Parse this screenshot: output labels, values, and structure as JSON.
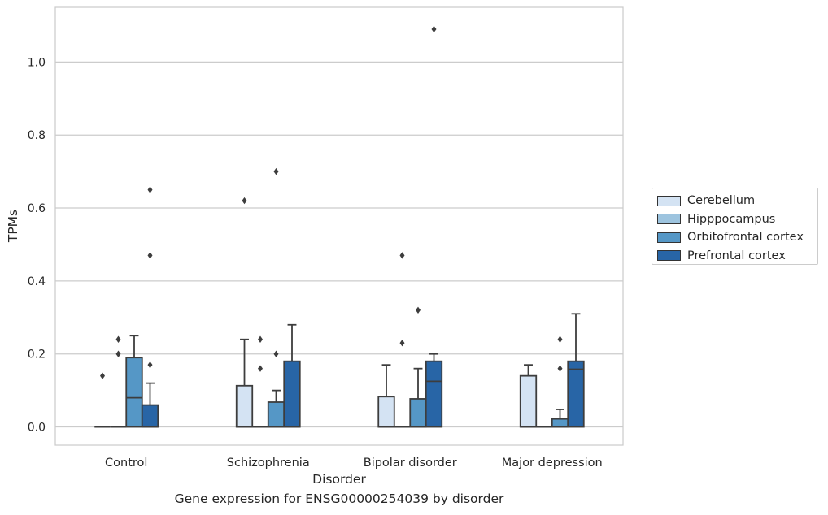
{
  "caption": "Gene expression for ENSG00000254039 by disorder",
  "chart_data": {
    "type": "box",
    "title": "",
    "xlabel": "Disorder",
    "ylabel": "TPMs",
    "ylim": [
      -0.05,
      1.15
    ],
    "yticks": [
      0.0,
      0.2,
      0.4,
      0.6,
      0.8,
      1.0
    ],
    "ytick_labels": [
      "0.0",
      "0.2",
      "0.4",
      "0.6",
      "0.8",
      "1.0"
    ],
    "categories": [
      "Control",
      "Schizophrenia",
      "Bipolar disorder",
      "Major depression"
    ],
    "grid": "horizontal",
    "legend_position": "right",
    "series": [
      {
        "name": "Cerebellum",
        "color": "#d4e3f3",
        "boxes": [
          {
            "q1": 0.0,
            "median": 0.0,
            "q3": 0.0,
            "whisker_low": 0.0,
            "whisker_high": 0.0,
            "outliers": [
              0.14
            ]
          },
          {
            "q1": 0.0,
            "median": 0.0,
            "q3": 0.113,
            "whisker_low": 0.0,
            "whisker_high": 0.24,
            "outliers": [
              0.62
            ]
          },
          {
            "q1": 0.0,
            "median": 0.0,
            "q3": 0.083,
            "whisker_low": 0.0,
            "whisker_high": 0.17,
            "outliers": []
          },
          {
            "q1": 0.0,
            "median": 0.0,
            "q3": 0.14,
            "whisker_low": 0.0,
            "whisker_high": 0.17,
            "outliers": []
          }
        ]
      },
      {
        "name": "Hipppocampus",
        "color": "#9dc4df",
        "boxes": [
          {
            "q1": 0.0,
            "median": 0.0,
            "q3": 0.0,
            "whisker_low": 0.0,
            "whisker_high": 0.0,
            "outliers": [
              0.2,
              0.24
            ]
          },
          {
            "q1": 0.0,
            "median": 0.0,
            "q3": 0.0,
            "whisker_low": 0.0,
            "whisker_high": 0.0,
            "outliers": [
              0.16,
              0.24
            ]
          },
          {
            "q1": 0.0,
            "median": 0.0,
            "q3": 0.0,
            "whisker_low": 0.0,
            "whisker_high": 0.0,
            "outliers": [
              0.23,
              0.47
            ]
          },
          {
            "q1": 0.0,
            "median": 0.0,
            "q3": 0.0,
            "whisker_low": 0.0,
            "whisker_high": 0.0,
            "outliers": []
          }
        ]
      },
      {
        "name": "Orbitofrontal cortex",
        "color": "#5597c6",
        "boxes": [
          {
            "q1": 0.0,
            "median": 0.08,
            "q3": 0.19,
            "whisker_low": 0.0,
            "whisker_high": 0.25,
            "outliers": []
          },
          {
            "q1": 0.0,
            "median": 0.0,
            "q3": 0.068,
            "whisker_low": 0.0,
            "whisker_high": 0.1,
            "outliers": [
              0.2,
              0.7
            ]
          },
          {
            "q1": 0.0,
            "median": 0.0,
            "q3": 0.077,
            "whisker_low": 0.0,
            "whisker_high": 0.16,
            "outliers": [
              0.32
            ]
          },
          {
            "q1": 0.0,
            "median": 0.0,
            "q3": 0.022,
            "whisker_low": 0.0,
            "whisker_high": 0.048,
            "outliers": [
              0.16,
              0.24
            ]
          }
        ]
      },
      {
        "name": "Prefrontal cortex",
        "color": "#2865a6",
        "boxes": [
          {
            "q1": 0.0,
            "median": 0.0,
            "q3": 0.06,
            "whisker_low": 0.0,
            "whisker_high": 0.12,
            "outliers": [
              0.17,
              0.47,
              0.65
            ]
          },
          {
            "q1": 0.0,
            "median": 0.0,
            "q3": 0.18,
            "whisker_low": 0.0,
            "whisker_high": 0.28,
            "outliers": []
          },
          {
            "q1": 0.0,
            "median": 0.125,
            "q3": 0.18,
            "whisker_low": 0.0,
            "whisker_high": 0.2,
            "outliers": [
              1.09
            ]
          },
          {
            "q1": 0.0,
            "median": 0.158,
            "q3": 0.18,
            "whisker_low": 0.0,
            "whisker_high": 0.31,
            "outliers": []
          }
        ]
      }
    ]
  }
}
